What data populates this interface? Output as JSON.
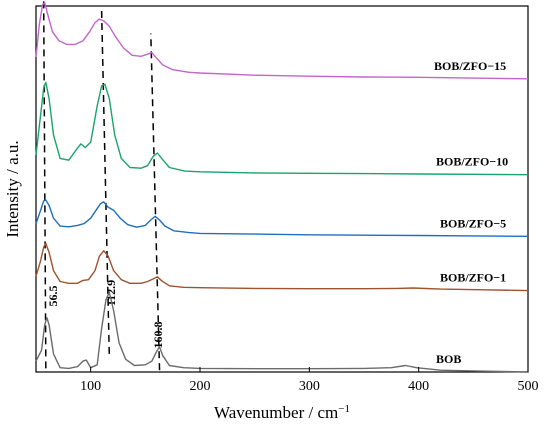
{
  "chart_data": {
    "type": "line",
    "xlabel": "Wavenumber / cm",
    "xlabel_superscript": "−1",
    "ylabel": "Intensity / a.u.",
    "xlim": [
      50,
      500
    ],
    "ylim": [
      0,
      10
    ],
    "xticks": [
      100,
      200,
      300,
      400,
      500
    ],
    "y_ticks_shown": false,
    "grid": false,
    "legend": "none",
    "series": [
      {
        "name": "BOB",
        "color": "#6b6b6b",
        "offset": 0.0,
        "points": [
          [
            50,
            0.3
          ],
          [
            55,
            0.6
          ],
          [
            58,
            1.3
          ],
          [
            60,
            1.5
          ],
          [
            62,
            1.3
          ],
          [
            66,
            0.5
          ],
          [
            72,
            0.12
          ],
          [
            80,
            0.1
          ],
          [
            88,
            0.15
          ],
          [
            93,
            0.3
          ],
          [
            96,
            0.33
          ],
          [
            100,
            0.12
          ],
          [
            106,
            0.2
          ],
          [
            110,
            1.2
          ],
          [
            114,
            2.0
          ],
          [
            117,
            2.2
          ],
          [
            121,
            1.7
          ],
          [
            126,
            0.8
          ],
          [
            132,
            0.35
          ],
          [
            140,
            0.18
          ],
          [
            150,
            0.2
          ],
          [
            156,
            0.3
          ],
          [
            160,
            0.55
          ],
          [
            163,
            0.7
          ],
          [
            166,
            0.45
          ],
          [
            172,
            0.18
          ],
          [
            185,
            0.12
          ],
          [
            200,
            0.1
          ],
          [
            250,
            0.09
          ],
          [
            300,
            0.09
          ],
          [
            350,
            0.1
          ],
          [
            375,
            0.12
          ],
          [
            388,
            0.18
          ],
          [
            398,
            0.12
          ],
          [
            420,
            0.05
          ],
          [
            450,
            0.03
          ],
          [
            500,
            0.0
          ]
        ]
      },
      {
        "name": "BOB/ZFO−1",
        "color": "#a0522d",
        "offset": 2.25,
        "points": [
          [
            50,
            0.4
          ],
          [
            54,
            0.8
          ],
          [
            57,
            1.2
          ],
          [
            59,
            1.3
          ],
          [
            62,
            1.05
          ],
          [
            66,
            0.55
          ],
          [
            72,
            0.25
          ],
          [
            80,
            0.2
          ],
          [
            88,
            0.2
          ],
          [
            93,
            0.28
          ],
          [
            98,
            0.3
          ],
          [
            104,
            0.55
          ],
          [
            108,
            0.95
          ],
          [
            112,
            1.1
          ],
          [
            116,
            0.95
          ],
          [
            121,
            0.55
          ],
          [
            128,
            0.3
          ],
          [
            136,
            0.2
          ],
          [
            146,
            0.2
          ],
          [
            152,
            0.25
          ],
          [
            157,
            0.32
          ],
          [
            161,
            0.38
          ],
          [
            165,
            0.27
          ],
          [
            172,
            0.13
          ],
          [
            185,
            0.09
          ],
          [
            200,
            0.08
          ],
          [
            250,
            0.06
          ],
          [
            300,
            0.05
          ],
          [
            350,
            0.05
          ],
          [
            380,
            0.06
          ],
          [
            395,
            0.07
          ],
          [
            420,
            0.04
          ],
          [
            460,
            0.02
          ],
          [
            500,
            0.0
          ]
        ]
      },
      {
        "name": "BOB/ZFO−5",
        "color": "#1f6fbf",
        "offset": 3.75,
        "points": [
          [
            50,
            0.35
          ],
          [
            54,
            0.7
          ],
          [
            57,
            0.98
          ],
          [
            59,
            1.0
          ],
          [
            62,
            0.85
          ],
          [
            66,
            0.5
          ],
          [
            72,
            0.28
          ],
          [
            80,
            0.26
          ],
          [
            88,
            0.3
          ],
          [
            94,
            0.35
          ],
          [
            100,
            0.5
          ],
          [
            105,
            0.72
          ],
          [
            109,
            0.9
          ],
          [
            112,
            0.95
          ],
          [
            116,
            0.8
          ],
          [
            121,
            0.72
          ],
          [
            127,
            0.5
          ],
          [
            134,
            0.32
          ],
          [
            142,
            0.25
          ],
          [
            150,
            0.3
          ],
          [
            155,
            0.45
          ],
          [
            159,
            0.55
          ],
          [
            163,
            0.45
          ],
          [
            168,
            0.28
          ],
          [
            176,
            0.15
          ],
          [
            190,
            0.1
          ],
          [
            200,
            0.08
          ],
          [
            250,
            0.06
          ],
          [
            300,
            0.04
          ],
          [
            350,
            0.03
          ],
          [
            400,
            0.02
          ],
          [
            450,
            0.01
          ],
          [
            500,
            0.0
          ]
        ]
      },
      {
        "name": "BOB/ZFO−10",
        "color": "#1aa36b",
        "offset": 5.45,
        "points": [
          [
            50,
            0.55
          ],
          [
            54,
            1.6
          ],
          [
            57,
            2.4
          ],
          [
            59,
            2.55
          ],
          [
            62,
            2.1
          ],
          [
            66,
            1.1
          ],
          [
            72,
            0.45
          ],
          [
            80,
            0.4
          ],
          [
            87,
            0.7
          ],
          [
            91,
            0.85
          ],
          [
            95,
            0.75
          ],
          [
            100,
            0.9
          ],
          [
            106,
            1.9
          ],
          [
            110,
            2.45
          ],
          [
            113,
            2.5
          ],
          [
            117,
            2.1
          ],
          [
            122,
            1.1
          ],
          [
            128,
            0.45
          ],
          [
            136,
            0.2
          ],
          [
            146,
            0.18
          ],
          [
            152,
            0.25
          ],
          [
            157,
            0.5
          ],
          [
            161,
            0.6
          ],
          [
            165,
            0.45
          ],
          [
            172,
            0.2
          ],
          [
            186,
            0.1
          ],
          [
            200,
            0.08
          ],
          [
            250,
            0.05
          ],
          [
            300,
            0.04
          ],
          [
            350,
            0.03
          ],
          [
            400,
            0.02
          ],
          [
            450,
            0.01
          ],
          [
            500,
            0.0
          ]
        ]
      },
      {
        "name": "BOB/ZFO−15",
        "color": "#c266c9",
        "offset": 8.1,
        "points": [
          [
            50,
            0.6
          ],
          [
            53,
            1.5
          ],
          [
            56,
            2.05
          ],
          [
            58,
            2.1
          ],
          [
            61,
            1.75
          ],
          [
            65,
            1.3
          ],
          [
            71,
            1.05
          ],
          [
            78,
            0.95
          ],
          [
            86,
            0.95
          ],
          [
            93,
            1.05
          ],
          [
            99,
            1.3
          ],
          [
            104,
            1.55
          ],
          [
            108,
            1.65
          ],
          [
            112,
            1.6
          ],
          [
            117,
            1.45
          ],
          [
            123,
            1.15
          ],
          [
            130,
            0.85
          ],
          [
            138,
            0.65
          ],
          [
            146,
            0.62
          ],
          [
            152,
            0.68
          ],
          [
            156,
            0.72
          ],
          [
            160,
            0.58
          ],
          [
            166,
            0.38
          ],
          [
            175,
            0.25
          ],
          [
            190,
            0.18
          ],
          [
            200,
            0.16
          ],
          [
            250,
            0.1
          ],
          [
            300,
            0.07
          ],
          [
            350,
            0.05
          ],
          [
            400,
            0.04
          ],
          [
            450,
            0.02
          ],
          [
            500,
            0.0
          ]
        ]
      }
    ],
    "guide_lines": [
      {
        "label": "56.5",
        "from": [
          59,
          0.1
        ],
        "to": [
          57,
          10.35
        ]
      },
      {
        "label": "112.9",
        "from": [
          117,
          0.5
        ],
        "to": [
          110,
          10.0
        ]
      },
      {
        "label": "160.8",
        "from": [
          163,
          0.05
        ],
        "to": [
          155,
          9.35
        ]
      }
    ]
  }
}
